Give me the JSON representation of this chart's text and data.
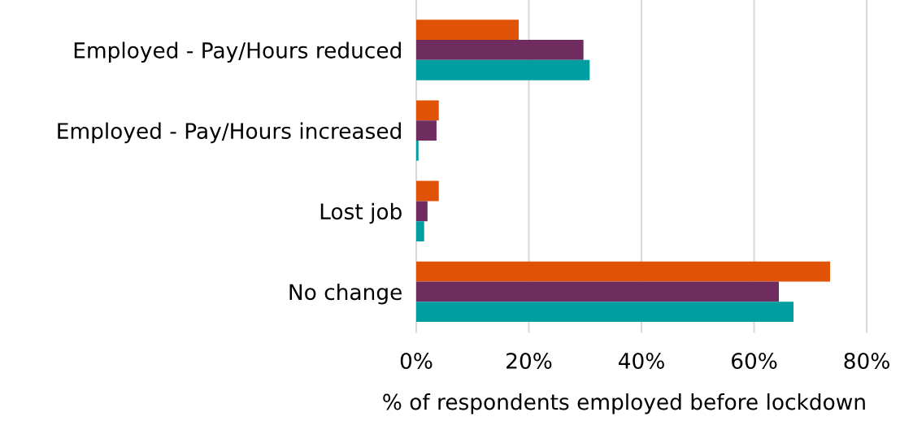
{
  "chart_data": {
    "type": "bar",
    "orientation": "horizontal",
    "xlabel": "% of respondents employed before lockdown",
    "categories": [
      "Employed - Pay/Hours reduced",
      "Employed - Pay/Hours increased",
      "Lost job",
      "No change"
    ],
    "series": [
      {
        "color": "#e05206",
        "values": [
          18.2,
          4.0,
          4.0,
          73.5
        ]
      },
      {
        "color": "#6f2c5f",
        "values": [
          29.7,
          3.6,
          2.0,
          64.4
        ]
      },
      {
        "color": "#009ea0",
        "values": [
          30.8,
          0.4,
          1.4,
          67.0
        ]
      }
    ],
    "xlim": [
      0,
      80
    ],
    "xticks": [
      {
        "value": 0,
        "label": "0%"
      },
      {
        "value": 20,
        "label": "20%"
      },
      {
        "value": 40,
        "label": "40%"
      },
      {
        "value": 60,
        "label": "60%"
      },
      {
        "value": 80,
        "label": "80%"
      }
    ],
    "grid": "x",
    "legend": false
  }
}
